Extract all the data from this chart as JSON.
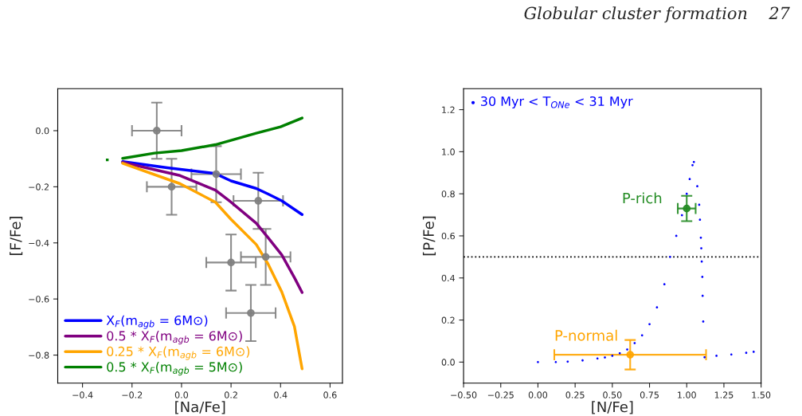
{
  "chart_data": [
    {
      "type": "line",
      "xlabel": "[Na/Fe]",
      "ylabel": "[F/Fe]",
      "xlim": [
        -0.5,
        0.65
      ],
      "ylim": [
        -0.9,
        0.15
      ],
      "xticks": [
        {
          "value": -0.4,
          "label": "−0.4"
        },
        {
          "value": -0.2,
          "label": "−0.2"
        },
        {
          "value": 0.0,
          "label": "0.0"
        },
        {
          "value": 0.2,
          "label": "0.2"
        },
        {
          "value": 0.4,
          "label": "0.4"
        },
        {
          "value": 0.6,
          "label": "0.6"
        }
      ],
      "yticks": [
        {
          "value": -0.8,
          "label": "−0.8"
        },
        {
          "value": -0.6,
          "label": "−0.6"
        },
        {
          "value": -0.4,
          "label": "−0.4"
        },
        {
          "value": -0.2,
          "label": "−0.2"
        },
        {
          "value": 0.0,
          "label": "0.0"
        }
      ],
      "legend": "bottom left",
      "grid": false,
      "series": [
        {
          "type": "scatter",
          "color": "#808080",
          "marker": "circle",
          "x": [
            -0.1,
            -0.04,
            0.14,
            0.31,
            0.2,
            0.34,
            0.28
          ],
          "values": [
            0.0,
            -0.2,
            -0.155,
            -0.25,
            -0.47,
            -0.45,
            -0.65
          ],
          "errors": [
            0.1,
            0.1,
            0.1,
            0.1,
            0.1,
            0.1,
            0.1
          ],
          "xerrors": [
            0.1,
            0.1,
            0.1,
            0.1,
            0.1,
            0.1,
            0.1
          ]
        },
        {
          "type": "line",
          "name": "X$_{F}$(m$_{agb}$ = 6M⊙)",
          "color": "#0000ff",
          "x": [
            -0.238,
            -0.058,
            0.137,
            0.2,
            0.302,
            0.35,
            0.405,
            0.487
          ],
          "values": [
            -0.11,
            -0.132,
            -0.153,
            -0.179,
            -0.206,
            -0.226,
            -0.25,
            -0.299
          ]
        },
        {
          "type": "line",
          "name": "0.5 * X$_{F}$(m$_{agb}$ = 6M⊙)",
          "color": "#800080",
          "x": [
            -0.238,
            -0.006,
            0.137,
            0.2,
            0.302,
            0.35,
            0.405,
            0.456,
            0.487
          ],
          "values": [
            -0.113,
            -0.16,
            -0.212,
            -0.255,
            -0.33,
            -0.382,
            -0.443,
            -0.524,
            -0.577
          ]
        },
        {
          "type": "line",
          "name": "0.25 * X$_{F}$(m$_{agb}$ = 6M⊙)",
          "color": "#ffa500",
          "x": [
            -0.238,
            -0.006,
            0.137,
            0.2,
            0.302,
            0.35,
            0.405,
            0.456,
            0.487
          ],
          "values": [
            -0.116,
            -0.189,
            -0.255,
            -0.316,
            -0.406,
            -0.476,
            -0.575,
            -0.698,
            -0.849
          ]
        },
        {
          "type": "line",
          "name": "0.5 * X$_{F}$(m$_{agb}$ = 5M⊙)",
          "color": "#008000",
          "x": [
            -0.238,
            -0.109,
            0.0,
            0.137,
            0.302,
            0.4,
            0.487
          ],
          "values": [
            -0.099,
            -0.08,
            -0.071,
            -0.05,
            -0.009,
            0.014,
            0.045
          ]
        },
        {
          "type": "scatter",
          "color": "#008000",
          "marker": "square",
          "x": [
            -0.3
          ],
          "values": [
            -0.104
          ]
        }
      ]
    },
    {
      "type": "scatter",
      "xlabel": "[N/Fe]",
      "ylabel": "[P/Fe]",
      "xlim": [
        -0.5,
        1.5
      ],
      "ylim": [
        -0.1,
        1.3
      ],
      "xticks": [
        {
          "value": -0.5,
          "label": "−0.50"
        },
        {
          "value": -0.25,
          "label": "−0.25"
        },
        {
          "value": 0.0,
          "label": "0.00"
        },
        {
          "value": 0.25,
          "label": "0.25"
        },
        {
          "value": 0.5,
          "label": "0.50"
        },
        {
          "value": 0.75,
          "label": "0.75"
        },
        {
          "value": 1.0,
          "label": "1.00"
        },
        {
          "value": 1.25,
          "label": "1.25"
        },
        {
          "value": 1.5,
          "label": "1.50"
        }
      ],
      "yticks": [
        {
          "value": 0.0,
          "label": "0.0"
        },
        {
          "value": 0.2,
          "label": "0.2"
        },
        {
          "value": 0.4,
          "label": "0.4"
        },
        {
          "value": 0.6,
          "label": "0.6"
        },
        {
          "value": 0.8,
          "label": "0.8"
        },
        {
          "value": 1.0,
          "label": "1.0"
        },
        {
          "value": 1.2,
          "label": "1.2"
        }
      ],
      "legend": "top left",
      "grid": false,
      "ref_lines": [
        {
          "axis": "y",
          "value": 0.5,
          "color": "#000000",
          "line_style": "dotted"
        }
      ],
      "annotations": [
        "Globular cluster formation    27"
      ],
      "series": [
        {
          "type": "scatter",
          "name": "30 Myr < T$_{ONe}$ < 31 Myr",
          "color": "#0000ff",
          "marker": "circle",
          "x": [
            0.0,
            0.12,
            0.2,
            0.3,
            0.4,
            0.45,
            0.5,
            0.55,
            0.6,
            0.65,
            0.7,
            0.75,
            0.8,
            0.85,
            0.888,
            0.93,
            0.968,
            1.0,
            1.02,
            1.039,
            1.048,
            1.071,
            1.084,
            1.089,
            1.095,
            1.098,
            1.101,
            1.105,
            1.107,
            1.111,
            1.12,
            1.2,
            1.3,
            1.4,
            1.45
          ],
          "values": [
            0.0,
            0.0,
            0.002,
            0.008,
            0.017,
            0.022,
            0.03,
            0.042,
            0.06,
            0.09,
            0.127,
            0.18,
            0.26,
            0.37,
            0.5,
            0.6,
            0.698,
            0.8,
            0.87,
            0.936,
            0.951,
            0.836,
            0.748,
            0.677,
            0.591,
            0.541,
            0.478,
            0.405,
            0.315,
            0.193,
            0.023,
            0.03,
            0.036,
            0.044,
            0.049
          ]
        },
        {
          "type": "scatter",
          "name": "P-rich",
          "color": "#228b22",
          "marker": "circle",
          "x": [
            1.0
          ],
          "values": [
            0.73
          ],
          "errors": [
            0.06
          ],
          "xerrors": [
            0.06
          ]
        },
        {
          "type": "scatter",
          "name": "P-normal",
          "color": "#ffa500",
          "marker": "circle",
          "x": [
            0.62
          ],
          "values": [
            0.035
          ],
          "errors": [
            0.07
          ],
          "xerrors": [
            [
              0.11,
              1.13
            ]
          ]
        }
      ]
    }
  ]
}
